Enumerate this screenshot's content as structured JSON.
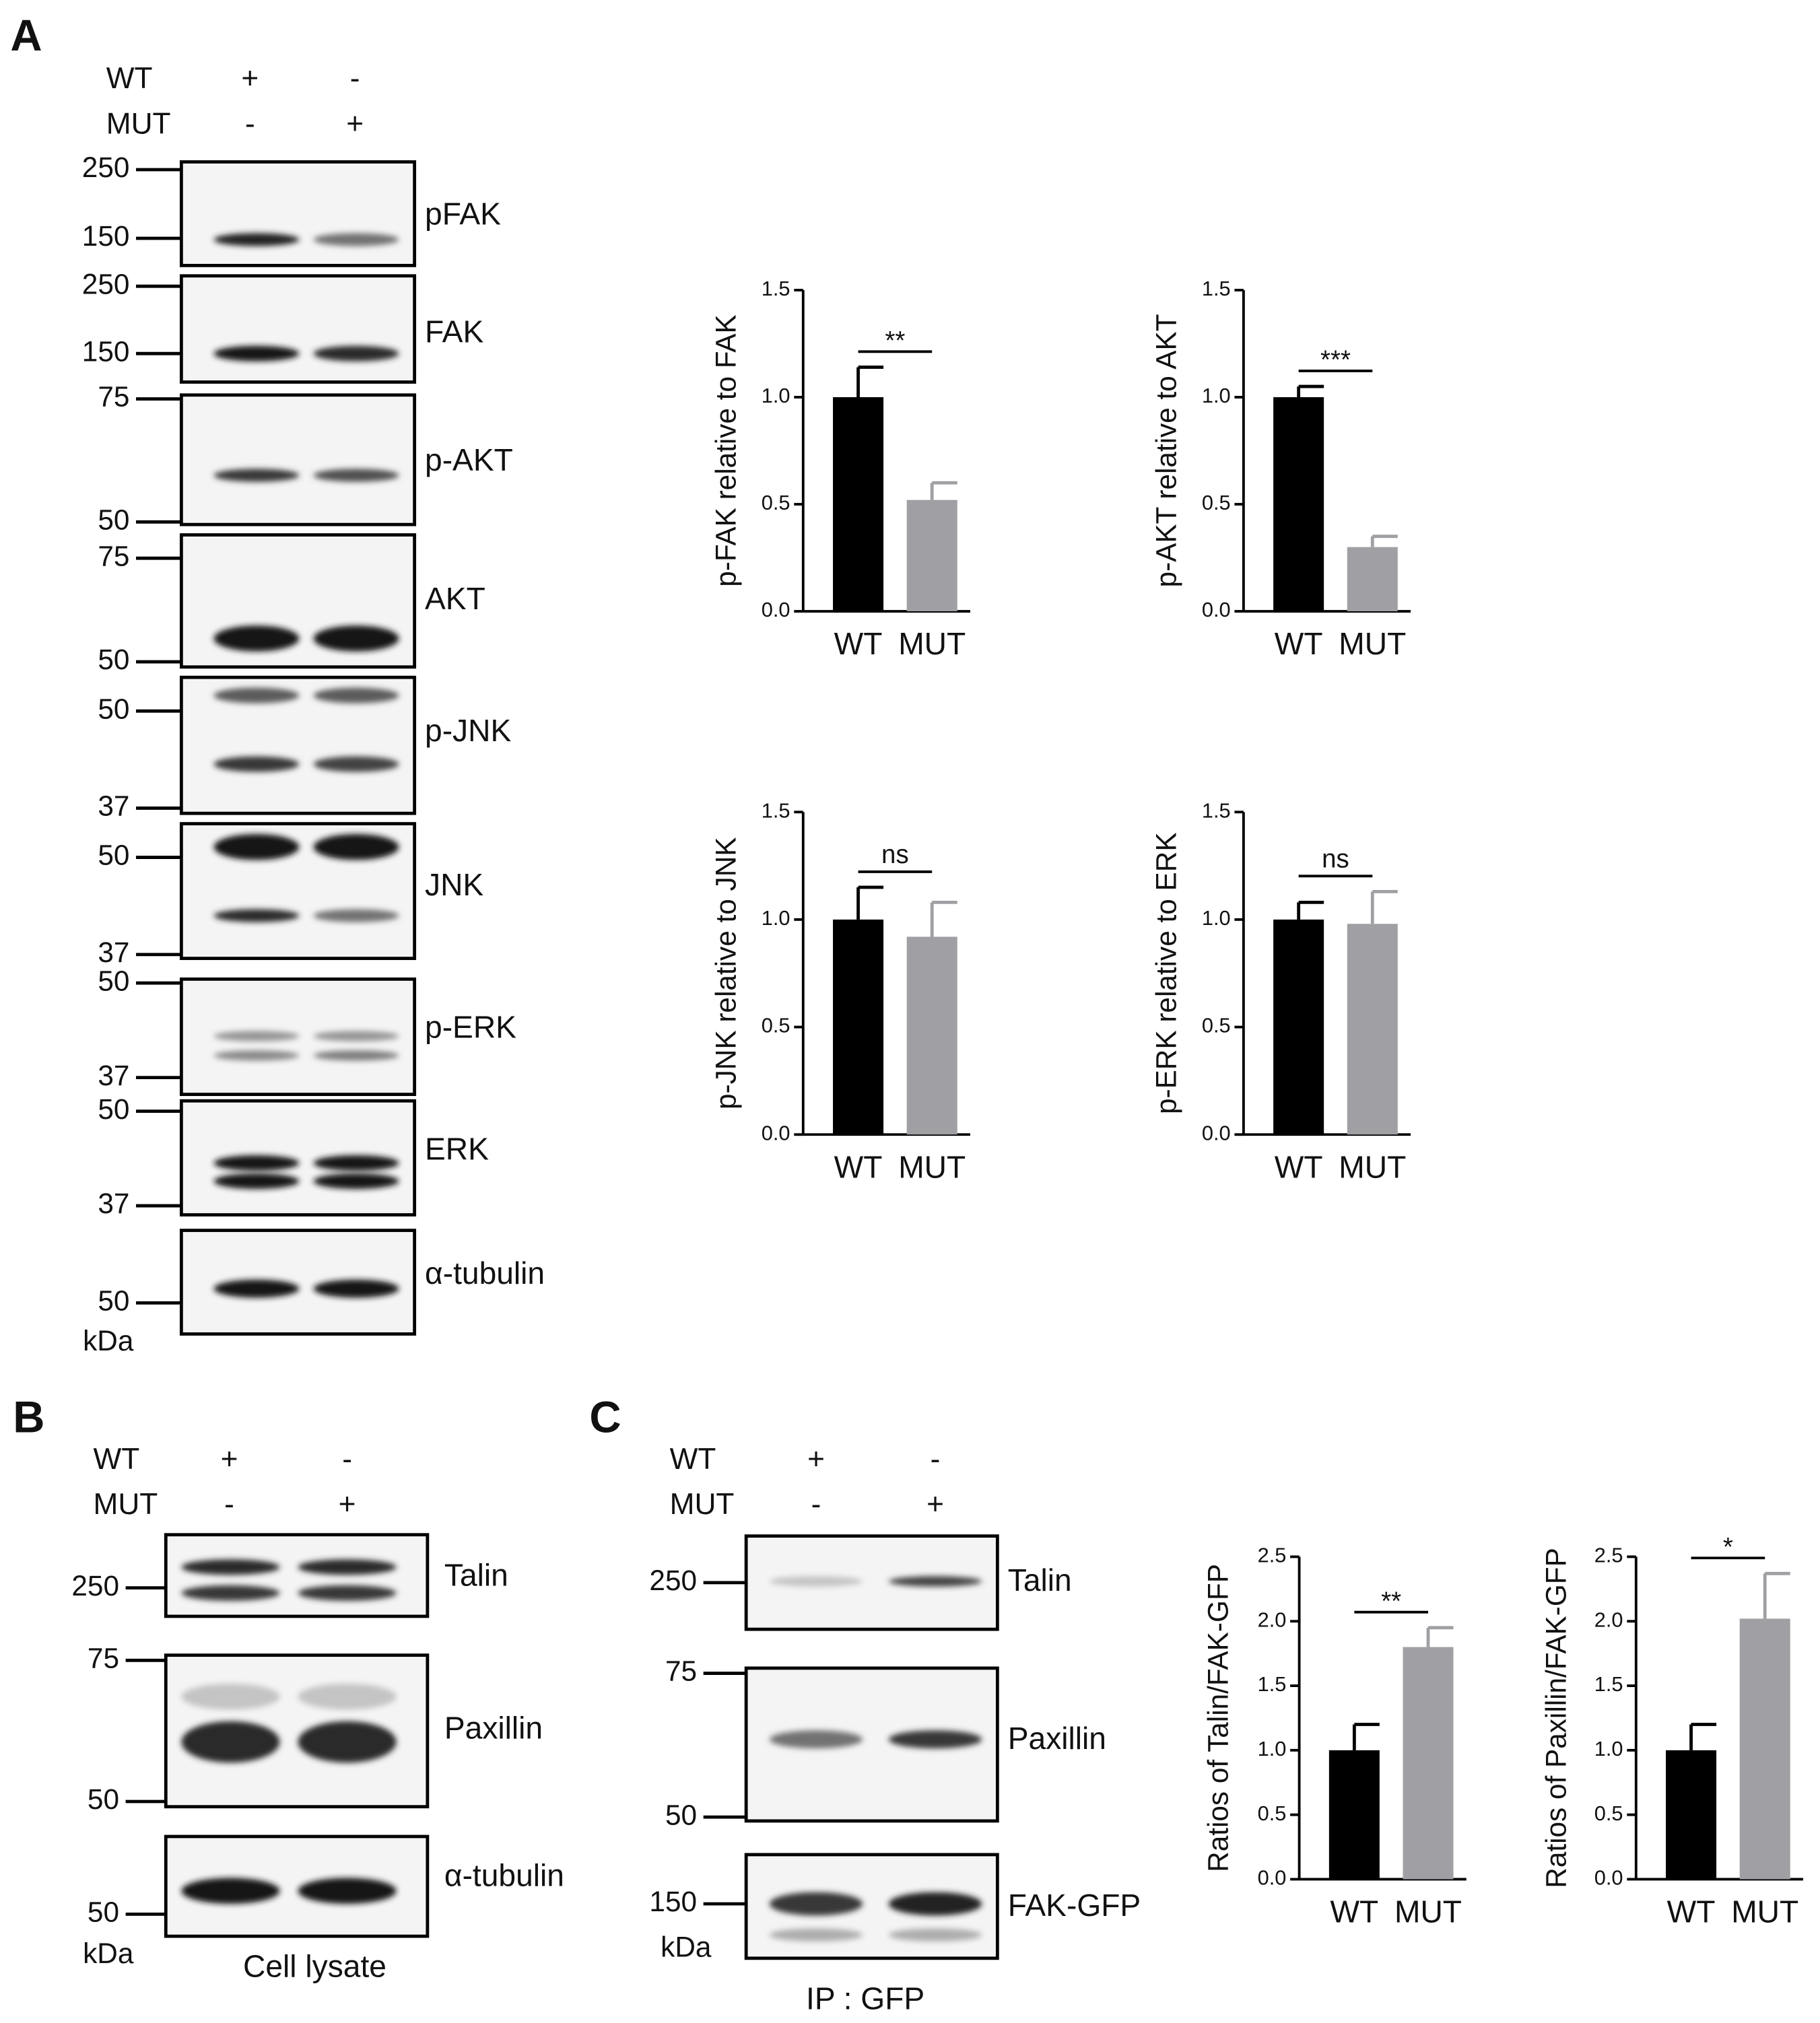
{
  "panel_a": {
    "label": "A",
    "conditions": [
      {
        "name": "WT",
        "marks": [
          "+",
          "-"
        ]
      },
      {
        "name": "MUT",
        "marks": [
          "-",
          "+"
        ]
      }
    ],
    "blots": [
      {
        "name": "pFAK",
        "markers": [
          250,
          150
        ]
      },
      {
        "name": "FAK",
        "markers": [
          250,
          150
        ]
      },
      {
        "name": "p-AKT",
        "markers": [
          75,
          50
        ]
      },
      {
        "name": "AKT",
        "markers": [
          75,
          50
        ]
      },
      {
        "name": "p-JNK",
        "markers": [
          50,
          37
        ]
      },
      {
        "name": "JNK",
        "markers": [
          50,
          37
        ]
      },
      {
        "name": "p-ERK",
        "markers": [
          50,
          37
        ]
      },
      {
        "name": "ERK",
        "markers": [
          50,
          37
        ]
      },
      {
        "name": "α-tubulin",
        "markers": [
          50
        ]
      }
    ],
    "unit": "kDa"
  },
  "panel_b": {
    "label": "B",
    "conditions": [
      {
        "name": "WT",
        "marks": [
          "+",
          "-"
        ]
      },
      {
        "name": "MUT",
        "marks": [
          "-",
          "+"
        ]
      }
    ],
    "blots": [
      {
        "name": "Talin",
        "markers": [
          250
        ]
      },
      {
        "name": "Paxillin",
        "markers": [
          75,
          50
        ]
      },
      {
        "name": "α-tubulin",
        "markers": [
          50
        ]
      }
    ],
    "unit": "kDa",
    "caption": "Cell lysate"
  },
  "panel_c": {
    "label": "C",
    "conditions": [
      {
        "name": "WT",
        "marks": [
          "+",
          "-"
        ]
      },
      {
        "name": "MUT",
        "marks": [
          "-",
          "+"
        ]
      }
    ],
    "blots": [
      {
        "name": "Talin",
        "markers": [
          250
        ]
      },
      {
        "name": "Paxillin",
        "markers": [
          75,
          50
        ]
      },
      {
        "name": "FAK-GFP",
        "markers": [
          150
        ]
      }
    ],
    "unit": "kDa",
    "caption": "IP : GFP"
  },
  "chart_data": [
    {
      "type": "bar",
      "ylabel": "p-FAK relative to FAK",
      "categories": [
        "WT",
        "MUT"
      ],
      "values": [
        1.0,
        0.52
      ],
      "errors": [
        0.14,
        0.08
      ],
      "colors": [
        "#000000",
        "#a0a0a4"
      ],
      "ylim": [
        0,
        1.5
      ],
      "yticks": [
        {
          "value": 0,
          "label": "0.0"
        },
        {
          "value": 0.5,
          "label": "0.5"
        },
        {
          "value": 1,
          "label": "1.0"
        },
        {
          "value": 1.5,
          "label": "1.5"
        }
      ],
      "significance": "**"
    },
    {
      "type": "bar",
      "ylabel": "p-AKT relative to AKT",
      "categories": [
        "WT",
        "MUT"
      ],
      "values": [
        1.0,
        0.3
      ],
      "errors": [
        0.05,
        0.05
      ],
      "colors": [
        "#000000",
        "#a0a0a4"
      ],
      "ylim": [
        0,
        1.5
      ],
      "yticks": [
        {
          "value": 0,
          "label": "0.0"
        },
        {
          "value": 0.5,
          "label": "0.5"
        },
        {
          "value": 1,
          "label": "1.0"
        },
        {
          "value": 1.5,
          "label": "1.5"
        }
      ],
      "significance": "***"
    },
    {
      "type": "bar",
      "ylabel": "p-JNK relative to JNK",
      "categories": [
        "WT",
        "MUT"
      ],
      "values": [
        1.0,
        0.92
      ],
      "errors": [
        0.15,
        0.16
      ],
      "colors": [
        "#000000",
        "#a0a0a4"
      ],
      "ylim": [
        0,
        1.5
      ],
      "yticks": [
        {
          "value": 0,
          "label": "0.0"
        },
        {
          "value": 0.5,
          "label": "0.5"
        },
        {
          "value": 1,
          "label": "1.0"
        },
        {
          "value": 1.5,
          "label": "1.5"
        }
      ],
      "significance": "ns"
    },
    {
      "type": "bar",
      "ylabel": "p-ERK relative to ERK",
      "categories": [
        "WT",
        "MUT"
      ],
      "values": [
        1.0,
        0.98
      ],
      "errors": [
        0.08,
        0.15
      ],
      "colors": [
        "#000000",
        "#a0a0a4"
      ],
      "ylim": [
        0,
        1.5
      ],
      "yticks": [
        {
          "value": 0,
          "label": "0.0"
        },
        {
          "value": 0.5,
          "label": "0.5"
        },
        {
          "value": 1,
          "label": "1.0"
        },
        {
          "value": 1.5,
          "label": "1.5"
        }
      ],
      "significance": "ns"
    },
    {
      "type": "bar",
      "ylabel": "Ratios of Talin/FAK-GFP",
      "categories": [
        "WT",
        "MUT"
      ],
      "values": [
        1.0,
        1.8
      ],
      "errors": [
        0.2,
        0.15
      ],
      "colors": [
        "#000000",
        "#a0a0a4"
      ],
      "ylim": [
        0,
        2.5
      ],
      "yticks": [
        {
          "value": 0,
          "label": "0.0"
        },
        {
          "value": 0.5,
          "label": "0.5"
        },
        {
          "value": 1,
          "label": "1.0"
        },
        {
          "value": 1.5,
          "label": "1.5"
        },
        {
          "value": 2,
          "label": "2.0"
        },
        {
          "value": 2.5,
          "label": "2.5"
        }
      ],
      "significance": "**"
    },
    {
      "type": "bar",
      "ylabel": "Ratios of Paxillin/FAK-GFP",
      "categories": [
        "WT",
        "MUT"
      ],
      "values": [
        1.0,
        2.02
      ],
      "errors": [
        0.2,
        0.35
      ],
      "colors": [
        "#000000",
        "#a0a0a4"
      ],
      "ylim": [
        0,
        2.5
      ],
      "yticks": [
        {
          "value": 0,
          "label": "0.0"
        },
        {
          "value": 0.5,
          "label": "0.5"
        },
        {
          "value": 1,
          "label": "1.0"
        },
        {
          "value": 1.5,
          "label": "1.5"
        },
        {
          "value": 2,
          "label": "2.0"
        },
        {
          "value": 2.5,
          "label": "2.5"
        }
      ],
      "significance": "*"
    }
  ]
}
